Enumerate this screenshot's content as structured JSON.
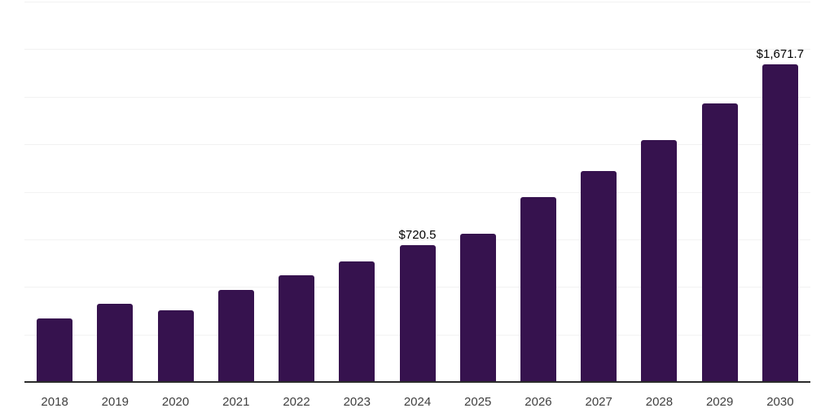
{
  "chart_data": {
    "type": "bar",
    "title": "",
    "xlabel": "",
    "ylabel": "",
    "categories": [
      "2018",
      "2019",
      "2020",
      "2021",
      "2022",
      "2023",
      "2024",
      "2025",
      "2026",
      "2027",
      "2028",
      "2029",
      "2030"
    ],
    "values": [
      334,
      410,
      376,
      486,
      563,
      635,
      720.5,
      781,
      974,
      1108,
      1272,
      1464,
      1671.7
    ],
    "data_labels": [
      {
        "category": "2024",
        "text": "$720.5"
      },
      {
        "category": "2030",
        "text": "$1,671.7"
      }
    ],
    "ylim": [
      0,
      2000
    ],
    "grid": true,
    "grid_step": 250,
    "y_tick_labels_visible": false,
    "legend_position": "none",
    "colors": {
      "bar": "#36124E",
      "axis_line": "#2b2b2b",
      "gridline": "#f2f2f2",
      "data_label": "#000000",
      "tick_label": "#404040",
      "background": "#ffffff"
    }
  }
}
